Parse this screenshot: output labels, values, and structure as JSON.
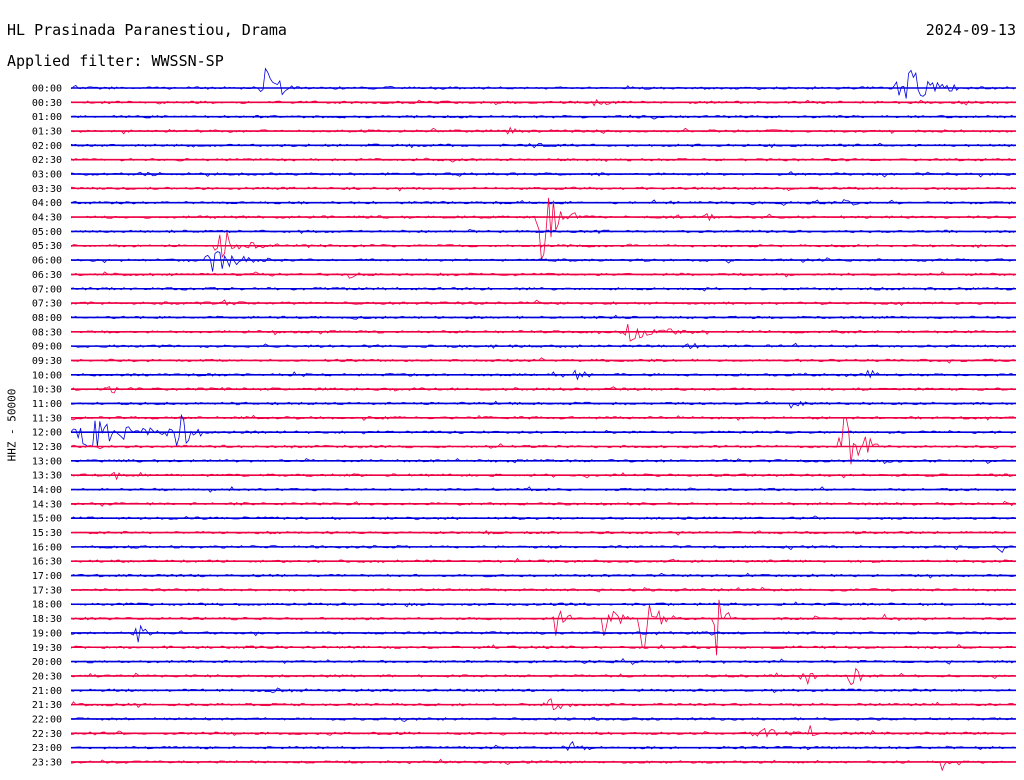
{
  "header": {
    "station": "HL Prasinada Paranestiou, Drama",
    "filter": "Applied filter: WWSSN-SP",
    "date": "2024-09-13"
  },
  "chart_data": {
    "type": "line",
    "title": "HL Prasinada Paranestiou, Drama",
    "subtitle": "Applied filter: WWSSN-SP",
    "date": "2024-09-13",
    "ylabel": "HHZ - 50000",
    "xlabel": "",
    "grid": false,
    "colors": {
      "even": "#0000dd",
      "odd": "#ee0044"
    },
    "rows": [
      {
        "label": "00:00",
        "events": [
          {
            "t": 0.2,
            "amp": 1.8,
            "dur": 0.04
          },
          {
            "t": 0.87,
            "amp": 1.8,
            "dur": 0.07
          }
        ]
      },
      {
        "label": "00:30",
        "events": [
          {
            "t": 0.55,
            "amp": 0.2,
            "dur": 0.03
          },
          {
            "t": 0.94,
            "amp": 0.2,
            "dur": 0.02
          }
        ]
      },
      {
        "label": "01:00",
        "events": []
      },
      {
        "label": "01:30",
        "events": [
          {
            "t": 0.46,
            "amp": 0.2,
            "dur": 0.02
          }
        ]
      },
      {
        "label": "02:00",
        "events": [
          {
            "t": 0.48,
            "amp": 0.2,
            "dur": 0.03
          }
        ]
      },
      {
        "label": "02:30",
        "events": []
      },
      {
        "label": "03:00",
        "events": [
          {
            "t": 0.07,
            "amp": 0.15,
            "dur": 0.03
          }
        ]
      },
      {
        "label": "03:30",
        "events": []
      },
      {
        "label": "04:00",
        "events": [
          {
            "t": 0.815,
            "amp": 0.4,
            "dur": 0.02
          }
        ]
      },
      {
        "label": "04:30",
        "events": [
          {
            "t": 0.49,
            "amp": 3.2,
            "dur": 0.05
          },
          {
            "t": 0.67,
            "amp": 0.3,
            "dur": 0.02
          }
        ]
      },
      {
        "label": "05:00",
        "events": []
      },
      {
        "label": "05:30",
        "events": [
          {
            "t": 0.15,
            "amp": 1.2,
            "dur": 0.06
          }
        ]
      },
      {
        "label": "06:00",
        "events": [
          {
            "t": 0.14,
            "amp": 0.8,
            "dur": 0.07
          }
        ]
      },
      {
        "label": "06:30",
        "events": [
          {
            "t": 0.29,
            "amp": 0.3,
            "dur": 0.02
          }
        ]
      },
      {
        "label": "07:00",
        "events": []
      },
      {
        "label": "07:30",
        "events": [
          {
            "t": 0.16,
            "amp": 0.15,
            "dur": 0.02
          }
        ]
      },
      {
        "label": "08:00",
        "events": []
      },
      {
        "label": "08:30",
        "events": [
          {
            "t": 0.58,
            "amp": 0.6,
            "dur": 0.08
          }
        ]
      },
      {
        "label": "09:00",
        "events": [
          {
            "t": 0.65,
            "amp": 0.3,
            "dur": 0.02
          }
        ]
      },
      {
        "label": "09:30",
        "events": []
      },
      {
        "label": "10:00",
        "events": [
          {
            "t": 0.53,
            "amp": 0.9,
            "dur": 0.02
          },
          {
            "t": 0.84,
            "amp": 0.6,
            "dur": 0.02
          }
        ]
      },
      {
        "label": "10:30",
        "events": [
          {
            "t": 0.035,
            "amp": 0.4,
            "dur": 0.03
          }
        ]
      },
      {
        "label": "11:00",
        "events": [
          {
            "t": 0.76,
            "amp": 0.4,
            "dur": 0.02
          }
        ]
      },
      {
        "label": "11:30",
        "events": []
      },
      {
        "label": "12:00",
        "events": [
          {
            "t": 0.0,
            "amp": 1.2,
            "dur": 0.14
          },
          {
            "t": 0.11,
            "amp": 1.8,
            "dur": 0.03
          }
        ]
      },
      {
        "label": "12:30",
        "events": [
          {
            "t": 0.81,
            "amp": 3.0,
            "dur": 0.05
          }
        ]
      },
      {
        "label": "13:00",
        "events": [
          {
            "t": 0.86,
            "amp": 0.4,
            "dur": 0.02
          }
        ]
      },
      {
        "label": "13:30",
        "events": [
          {
            "t": 0.045,
            "amp": 0.4,
            "dur": 0.01
          }
        ]
      },
      {
        "label": "14:00",
        "events": []
      },
      {
        "label": "14:30",
        "events": []
      },
      {
        "label": "15:00",
        "events": []
      },
      {
        "label": "15:30",
        "events": [
          {
            "t": 0.43,
            "amp": 0.2,
            "dur": 0.02
          }
        ]
      },
      {
        "label": "16:00",
        "events": [
          {
            "t": 0.98,
            "amp": 0.6,
            "dur": 0.02
          }
        ]
      },
      {
        "label": "16:30",
        "events": []
      },
      {
        "label": "17:00",
        "events": []
      },
      {
        "label": "17:30",
        "events": []
      },
      {
        "label": "18:00",
        "events": []
      },
      {
        "label": "18:30",
        "events": [
          {
            "t": 0.51,
            "amp": 2.0,
            "dur": 0.02
          },
          {
            "t": 0.56,
            "amp": 1.8,
            "dur": 0.03
          },
          {
            "t": 0.6,
            "amp": 3.2,
            "dur": 0.03
          },
          {
            "t": 0.68,
            "amp": 2.8,
            "dur": 0.02
          },
          {
            "t": 0.78,
            "amp": 0.6,
            "dur": 0.01
          },
          {
            "t": 0.86,
            "amp": 0.8,
            "dur": 0.01
          }
        ]
      },
      {
        "label": "19:00",
        "events": [
          {
            "t": 0.065,
            "amp": 1.4,
            "dur": 0.02
          }
        ]
      },
      {
        "label": "19:30",
        "events": []
      },
      {
        "label": "20:00",
        "events": []
      },
      {
        "label": "20:30",
        "events": [
          {
            "t": 0.77,
            "amp": 1.5,
            "dur": 0.02
          },
          {
            "t": 0.82,
            "amp": 2.0,
            "dur": 0.02
          }
        ]
      },
      {
        "label": "21:00",
        "events": [
          {
            "t": 0.21,
            "amp": 0.2,
            "dur": 0.04
          }
        ]
      },
      {
        "label": "21:30",
        "events": [
          {
            "t": 0.5,
            "amp": 0.9,
            "dur": 0.03
          }
        ]
      },
      {
        "label": "22:00",
        "events": [
          {
            "t": 0.35,
            "amp": 0.2,
            "dur": 0.01
          }
        ]
      },
      {
        "label": "22:30",
        "events": [
          {
            "t": 0.72,
            "amp": 0.5,
            "dur": 0.05
          },
          {
            "t": 0.78,
            "amp": 1.0,
            "dur": 0.01
          }
        ]
      },
      {
        "label": "23:00",
        "events": [
          {
            "t": 0.52,
            "amp": 0.7,
            "dur": 0.03
          }
        ]
      },
      {
        "label": "23:30",
        "events": [
          {
            "t": 0.46,
            "amp": 0.4,
            "dur": 0.01
          },
          {
            "t": 0.92,
            "amp": 0.8,
            "dur": 0.01
          }
        ]
      }
    ]
  }
}
